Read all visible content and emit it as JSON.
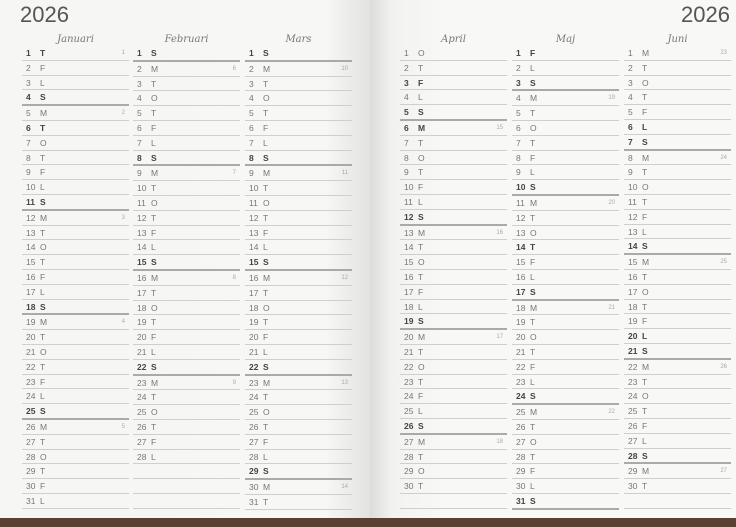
{
  "header": {
    "year_left": "2026",
    "year_right": "2026"
  },
  "months": [
    {
      "name": "Januari",
      "days": [
        [
          "1",
          "T",
          "1",
          1
        ],
        [
          "2",
          "F",
          "",
          0
        ],
        [
          "3",
          "L",
          "",
          0
        ],
        [
          "4",
          "S",
          "",
          1
        ],
        [
          "5",
          "M",
          "2",
          0
        ],
        [
          "6",
          "T",
          "",
          1
        ],
        [
          "7",
          "O",
          "",
          0
        ],
        [
          "8",
          "T",
          "",
          0
        ],
        [
          "9",
          "F",
          "",
          0
        ],
        [
          "10",
          "L",
          "",
          0
        ],
        [
          "11",
          "S",
          "",
          1
        ],
        [
          "12",
          "M",
          "3",
          0
        ],
        [
          "13",
          "T",
          "",
          0
        ],
        [
          "14",
          "O",
          "",
          0
        ],
        [
          "15",
          "T",
          "",
          0
        ],
        [
          "16",
          "F",
          "",
          0
        ],
        [
          "17",
          "L",
          "",
          0
        ],
        [
          "18",
          "S",
          "",
          1
        ],
        [
          "19",
          "M",
          "4",
          0
        ],
        [
          "20",
          "T",
          "",
          0
        ],
        [
          "21",
          "O",
          "",
          0
        ],
        [
          "22",
          "T",
          "",
          0
        ],
        [
          "23",
          "F",
          "",
          0
        ],
        [
          "24",
          "L",
          "",
          0
        ],
        [
          "25",
          "S",
          "",
          1
        ],
        [
          "26",
          "M",
          "5",
          0
        ],
        [
          "27",
          "T",
          "",
          0
        ],
        [
          "28",
          "O",
          "",
          0
        ],
        [
          "29",
          "T",
          "",
          0
        ],
        [
          "30",
          "F",
          "",
          0
        ],
        [
          "31",
          "L",
          "",
          0
        ]
      ]
    },
    {
      "name": "Februari",
      "days": [
        [
          "1",
          "S",
          "",
          1
        ],
        [
          "2",
          "M",
          "6",
          0
        ],
        [
          "3",
          "T",
          "",
          0
        ],
        [
          "4",
          "O",
          "",
          0
        ],
        [
          "5",
          "T",
          "",
          0
        ],
        [
          "6",
          "F",
          "",
          0
        ],
        [
          "7",
          "L",
          "",
          0
        ],
        [
          "8",
          "S",
          "",
          1
        ],
        [
          "9",
          "M",
          "7",
          0
        ],
        [
          "10",
          "T",
          "",
          0
        ],
        [
          "11",
          "O",
          "",
          0
        ],
        [
          "12",
          "T",
          "",
          0
        ],
        [
          "13",
          "F",
          "",
          0
        ],
        [
          "14",
          "L",
          "",
          0
        ],
        [
          "15",
          "S",
          "",
          1
        ],
        [
          "16",
          "M",
          "8",
          0
        ],
        [
          "17",
          "T",
          "",
          0
        ],
        [
          "18",
          "O",
          "",
          0
        ],
        [
          "19",
          "T",
          "",
          0
        ],
        [
          "20",
          "F",
          "",
          0
        ],
        [
          "21",
          "L",
          "",
          0
        ],
        [
          "22",
          "S",
          "",
          1
        ],
        [
          "23",
          "M",
          "9",
          0
        ],
        [
          "24",
          "T",
          "",
          0
        ],
        [
          "25",
          "O",
          "",
          0
        ],
        [
          "26",
          "T",
          "",
          0
        ],
        [
          "27",
          "F",
          "",
          0
        ],
        [
          "28",
          "L",
          "",
          0
        ]
      ]
    },
    {
      "name": "Mars",
      "days": [
        [
          "1",
          "S",
          "",
          1
        ],
        [
          "2",
          "M",
          "10",
          0
        ],
        [
          "3",
          "T",
          "",
          0
        ],
        [
          "4",
          "O",
          "",
          0
        ],
        [
          "5",
          "T",
          "",
          0
        ],
        [
          "6",
          "F",
          "",
          0
        ],
        [
          "7",
          "L",
          "",
          0
        ],
        [
          "8",
          "S",
          "",
          1
        ],
        [
          "9",
          "M",
          "11",
          0
        ],
        [
          "10",
          "T",
          "",
          0
        ],
        [
          "11",
          "O",
          "",
          0
        ],
        [
          "12",
          "T",
          "",
          0
        ],
        [
          "13",
          "F",
          "",
          0
        ],
        [
          "14",
          "L",
          "",
          0
        ],
        [
          "15",
          "S",
          "",
          1
        ],
        [
          "16",
          "M",
          "12",
          0
        ],
        [
          "17",
          "T",
          "",
          0
        ],
        [
          "18",
          "O",
          "",
          0
        ],
        [
          "19",
          "T",
          "",
          0
        ],
        [
          "20",
          "F",
          "",
          0
        ],
        [
          "21",
          "L",
          "",
          0
        ],
        [
          "22",
          "S",
          "",
          1
        ],
        [
          "23",
          "M",
          "13",
          0
        ],
        [
          "24",
          "T",
          "",
          0
        ],
        [
          "25",
          "O",
          "",
          0
        ],
        [
          "26",
          "T",
          "",
          0
        ],
        [
          "27",
          "F",
          "",
          0
        ],
        [
          "28",
          "L",
          "",
          0
        ],
        [
          "29",
          "S",
          "",
          1
        ],
        [
          "30",
          "M",
          "14",
          0
        ],
        [
          "31",
          "T",
          "",
          0
        ]
      ]
    },
    {
      "name": "April",
      "days": [
        [
          "1",
          "O",
          "",
          0
        ],
        [
          "2",
          "T",
          "",
          0
        ],
        [
          "3",
          "F",
          "",
          1
        ],
        [
          "4",
          "L",
          "",
          0
        ],
        [
          "5",
          "S",
          "",
          1
        ],
        [
          "6",
          "M",
          "15",
          1
        ],
        [
          "7",
          "T",
          "",
          0
        ],
        [
          "8",
          "O",
          "",
          0
        ],
        [
          "9",
          "T",
          "",
          0
        ],
        [
          "10",
          "F",
          "",
          0
        ],
        [
          "11",
          "L",
          "",
          0
        ],
        [
          "12",
          "S",
          "",
          1
        ],
        [
          "13",
          "M",
          "16",
          0
        ],
        [
          "14",
          "T",
          "",
          0
        ],
        [
          "15",
          "O",
          "",
          0
        ],
        [
          "16",
          "T",
          "",
          0
        ],
        [
          "17",
          "F",
          "",
          0
        ],
        [
          "18",
          "L",
          "",
          0
        ],
        [
          "19",
          "S",
          "",
          1
        ],
        [
          "20",
          "M",
          "17",
          0
        ],
        [
          "21",
          "T",
          "",
          0
        ],
        [
          "22",
          "O",
          "",
          0
        ],
        [
          "23",
          "T",
          "",
          0
        ],
        [
          "24",
          "F",
          "",
          0
        ],
        [
          "25",
          "L",
          "",
          0
        ],
        [
          "26",
          "S",
          "",
          1
        ],
        [
          "27",
          "M",
          "18",
          0
        ],
        [
          "28",
          "T",
          "",
          0
        ],
        [
          "29",
          "O",
          "",
          0
        ],
        [
          "30",
          "T",
          "",
          0
        ]
      ]
    },
    {
      "name": "Maj",
      "days": [
        [
          "1",
          "F",
          "",
          1
        ],
        [
          "2",
          "L",
          "",
          0
        ],
        [
          "3",
          "S",
          "",
          1
        ],
        [
          "4",
          "M",
          "19",
          0
        ],
        [
          "5",
          "T",
          "",
          0
        ],
        [
          "6",
          "O",
          "",
          0
        ],
        [
          "7",
          "T",
          "",
          0
        ],
        [
          "8",
          "F",
          "",
          0
        ],
        [
          "9",
          "L",
          "",
          0
        ],
        [
          "10",
          "S",
          "",
          1
        ],
        [
          "11",
          "M",
          "20",
          0
        ],
        [
          "12",
          "T",
          "",
          0
        ],
        [
          "13",
          "O",
          "",
          0
        ],
        [
          "14",
          "T",
          "",
          1
        ],
        [
          "15",
          "F",
          "",
          0
        ],
        [
          "16",
          "L",
          "",
          0
        ],
        [
          "17",
          "S",
          "",
          1
        ],
        [
          "18",
          "M",
          "21",
          0
        ],
        [
          "19",
          "T",
          "",
          0
        ],
        [
          "20",
          "O",
          "",
          0
        ],
        [
          "21",
          "T",
          "",
          0
        ],
        [
          "22",
          "F",
          "",
          0
        ],
        [
          "23",
          "L",
          "",
          0
        ],
        [
          "24",
          "S",
          "",
          1
        ],
        [
          "25",
          "M",
          "22",
          0
        ],
        [
          "26",
          "T",
          "",
          0
        ],
        [
          "27",
          "O",
          "",
          0
        ],
        [
          "28",
          "T",
          "",
          0
        ],
        [
          "29",
          "F",
          "",
          0
        ],
        [
          "30",
          "L",
          "",
          0
        ],
        [
          "31",
          "S",
          "",
          1
        ]
      ]
    },
    {
      "name": "Juni",
      "days": [
        [
          "1",
          "M",
          "23",
          0
        ],
        [
          "2",
          "T",
          "",
          0
        ],
        [
          "3",
          "O",
          "",
          0
        ],
        [
          "4",
          "T",
          "",
          0
        ],
        [
          "5",
          "F",
          "",
          0
        ],
        [
          "6",
          "L",
          "",
          1
        ],
        [
          "7",
          "S",
          "",
          1
        ],
        [
          "8",
          "M",
          "24",
          0
        ],
        [
          "9",
          "T",
          "",
          0
        ],
        [
          "10",
          "O",
          "",
          0
        ],
        [
          "11",
          "T",
          "",
          0
        ],
        [
          "12",
          "F",
          "",
          0
        ],
        [
          "13",
          "L",
          "",
          0
        ],
        [
          "14",
          "S",
          "",
          1
        ],
        [
          "15",
          "M",
          "25",
          0
        ],
        [
          "16",
          "T",
          "",
          0
        ],
        [
          "17",
          "O",
          "",
          0
        ],
        [
          "18",
          "T",
          "",
          0
        ],
        [
          "19",
          "F",
          "",
          0
        ],
        [
          "20",
          "L",
          "",
          1
        ],
        [
          "21",
          "S",
          "",
          1
        ],
        [
          "22",
          "M",
          "26",
          0
        ],
        [
          "23",
          "T",
          "",
          0
        ],
        [
          "24",
          "O",
          "",
          0
        ],
        [
          "25",
          "T",
          "",
          0
        ],
        [
          "26",
          "F",
          "",
          0
        ],
        [
          "27",
          "L",
          "",
          0
        ],
        [
          "28",
          "S",
          "",
          1
        ],
        [
          "29",
          "M",
          "27",
          0
        ],
        [
          "30",
          "T",
          "",
          0
        ]
      ]
    }
  ]
}
